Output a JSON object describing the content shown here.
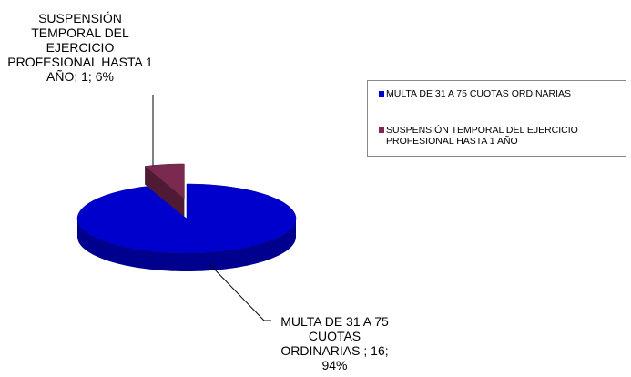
{
  "chart_data": {
    "type": "pie3d",
    "categories": [
      "MULTA DE 31 A 75 CUOTAS ORDINARIAS",
      "SUSPENSIÓN TEMPORAL DEL EJERCICIO PROFESIONAL HASTA 1 AÑO"
    ],
    "values": [
      16,
      1
    ],
    "value_labels": [
      "MULTA DE 31 A 75 CUOTAS ORDINARIAS ; 16; 94%",
      "SUSPENSIÓN TEMPORAL DEL EJERCICIO PROFESIONAL HASTA 1 AÑO; 1; 6%"
    ],
    "colors": [
      "#0000cc",
      "#7a2a4e"
    ],
    "side_colors": [
      "#00008f",
      "#4f1a33"
    ],
    "legend": "right"
  }
}
